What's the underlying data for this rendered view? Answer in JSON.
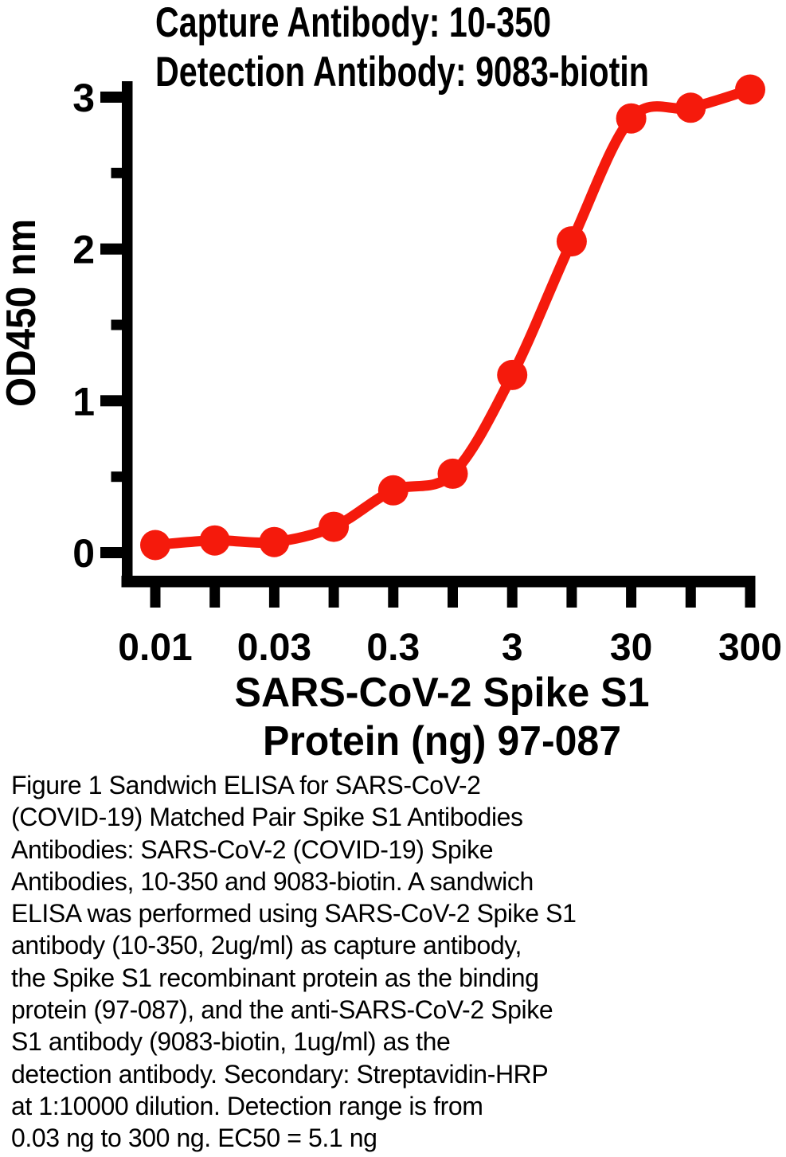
{
  "title": {
    "line1": "Capture Antibody: 10-350",
    "line2": "Detection Antibody: 9083-biotin"
  },
  "axes": {
    "y_label": "OD450 nm",
    "x_label_line1": "SARS-CoV-2 Spike S1",
    "x_label_line2": "Protein (ng) 97-087"
  },
  "colors": {
    "series": "#f51a0c",
    "axis": "#000000",
    "background": "#ffffff"
  },
  "chart_data": {
    "type": "line",
    "title": "Capture Antibody: 10-350 / Detection Antibody: 9083-biotin",
    "xlabel": "SARS-CoV-2 Spike S1 Protein (ng) 97-087",
    "ylabel": "OD450 nm",
    "x_scale": "log",
    "grid": false,
    "legend": "none",
    "marker": "circle",
    "series_color": "#f51a0c",
    "x": [
      0.01,
      0.017,
      0.03,
      0.1,
      0.3,
      1,
      3,
      10,
      30,
      100,
      300
    ],
    "y": [
      0.05,
      0.08,
      0.07,
      0.17,
      0.41,
      0.52,
      1.17,
      2.05,
      2.86,
      2.93,
      3.05
    ],
    "x_tick_labels": [
      {
        "tick": 0,
        "label": "0.01"
      },
      {
        "tick": 2,
        "label": "0.03"
      },
      {
        "tick": 4,
        "label": "0.3"
      },
      {
        "tick": 6,
        "label": "3"
      },
      {
        "tick": 8,
        "label": "30"
      },
      {
        "tick": 10,
        "label": "300"
      }
    ],
    "y_ticks_major": [
      0,
      1,
      2,
      3
    ],
    "y_ticks_minor": [
      0.5,
      1.5,
      2.5
    ],
    "ylim": [
      0,
      3.2
    ],
    "ec50_ng": 5.1,
    "detection_range_ng": [
      0.03,
      300
    ]
  },
  "caption": {
    "text": "Figure 1 Sandwich ELISA for SARS-CoV-2\n(COVID-19) Matched Pair Spike S1 Antibodies\nAntibodies: SARS-CoV-2 (COVID-19) Spike\nAntibodies, 10-350 and 9083-biotin. A sandwich\nELISA was performed using SARS-CoV-2 Spike S1\nantibody (10-350, 2ug/ml) as capture antibody,\nthe Spike S1 recombinant protein as the binding\nprotein (97-087), and the anti-SARS-CoV-2 Spike\nS1 antibody (9083-biotin, 1ug/ml) as the\ndetection antibody. Secondary: Streptavidin-HRP\nat 1:10000 dilution. Detection range is from\n0.03 ng to 300 ng. EC50 = 5.1 ng"
  }
}
